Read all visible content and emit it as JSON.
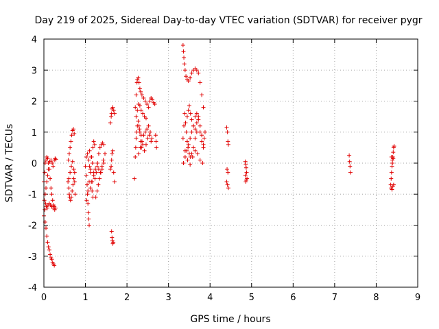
{
  "chart_data": {
    "type": "scatter",
    "title": "Day 219 of 2025, Sidereal Day-to-day VTEC variation (SDTVAR) for receiver pygr",
    "xlabel": "GPS time / hours",
    "ylabel": "SDTVAR / TECUs",
    "xlim": [
      0,
      9
    ],
    "ylim": [
      -4,
      4
    ],
    "xticks": [
      "0",
      "1",
      "2",
      "3",
      "4",
      "5",
      "6",
      "7",
      "8",
      "9"
    ],
    "yticks": [
      "-4",
      "-3",
      "-2",
      "-1",
      "0",
      "1",
      "2",
      "3",
      "4"
    ],
    "grid": true,
    "marker": "+",
    "color": "#e00000",
    "series": [
      {
        "name": "SDTVAR",
        "points": [
          [
            0.0,
            -0.6
          ],
          [
            0.02,
            -0.3
          ],
          [
            0.03,
            0.0
          ],
          [
            0.05,
            0.1
          ],
          [
            0.07,
            0.2
          ],
          [
            0.09,
            0.15
          ],
          [
            0.11,
            0.0
          ],
          [
            0.13,
            -0.2
          ],
          [
            0.15,
            -0.5
          ],
          [
            0.17,
            -0.8
          ],
          [
            0.19,
            -1.0
          ],
          [
            0.21,
            -1.2
          ],
          [
            0.23,
            -1.35
          ],
          [
            0.25,
            -1.4
          ],
          [
            0.28,
            -1.45
          ],
          [
            0.0,
            -1.7
          ],
          [
            0.02,
            -1.5
          ],
          [
            0.04,
            -1.3
          ],
          [
            0.06,
            -1.4
          ],
          [
            0.08,
            -1.45
          ],
          [
            0.1,
            -1.35
          ],
          [
            0.13,
            -1.3
          ],
          [
            0.16,
            -1.35
          ],
          [
            0.19,
            -1.4
          ],
          [
            0.22,
            -1.45
          ],
          [
            0.26,
            -1.5
          ],
          [
            0.01,
            -1.2
          ],
          [
            0.03,
            -1.0
          ],
          [
            0.05,
            -0.8
          ],
          [
            0.07,
            -0.6
          ],
          [
            0.09,
            -0.4
          ],
          [
            0.11,
            -0.2
          ],
          [
            0.14,
            0.05
          ],
          [
            0.17,
            0.1
          ],
          [
            0.2,
            0.0
          ],
          [
            0.22,
            -0.1
          ],
          [
            0.25,
            0.1
          ],
          [
            0.27,
            0.15
          ],
          [
            0.29,
            0.12
          ],
          [
            0.03,
            -1.9
          ],
          [
            0.05,
            -2.1
          ],
          [
            0.07,
            -2.35
          ],
          [
            0.09,
            -2.55
          ],
          [
            0.11,
            -2.7
          ],
          [
            0.13,
            -2.8
          ],
          [
            0.15,
            -2.95
          ],
          [
            0.17,
            -3.05
          ],
          [
            0.19,
            -3.1
          ],
          [
            0.21,
            -3.2
          ],
          [
            0.23,
            -3.25
          ],
          [
            0.25,
            -3.3
          ],
          [
            0.58,
            -0.6
          ],
          [
            0.6,
            -0.8
          ],
          [
            0.61,
            -1.0
          ],
          [
            0.62,
            -1.1
          ],
          [
            0.64,
            -1.2
          ],
          [
            0.66,
            -1.1
          ],
          [
            0.68,
            -0.9
          ],
          [
            0.7,
            -0.7
          ],
          [
            0.72,
            -0.5
          ],
          [
            0.74,
            -0.3
          ],
          [
            0.59,
            0.1
          ],
          [
            0.61,
            0.3
          ],
          [
            0.63,
            0.5
          ],
          [
            0.65,
            0.7
          ],
          [
            0.67,
            0.9
          ],
          [
            0.69,
            1.05
          ],
          [
            0.71,
            1.1
          ],
          [
            0.73,
            0.95
          ],
          [
            0.6,
            -0.5
          ],
          [
            0.63,
            -0.3
          ],
          [
            0.66,
            -0.1
          ],
          [
            0.69,
            0.05
          ],
          [
            0.72,
            -0.2
          ],
          [
            0.74,
            -0.6
          ],
          [
            0.75,
            -1.0
          ],
          [
            1.0,
            -0.1
          ],
          [
            1.02,
            -0.4
          ],
          [
            1.04,
            -0.7
          ],
          [
            1.05,
            -1.0
          ],
          [
            1.06,
            -1.3
          ],
          [
            1.07,
            -1.6
          ],
          [
            1.08,
            -1.8
          ],
          [
            1.09,
            -2.0
          ],
          [
            1.02,
            0.2
          ],
          [
            1.05,
            0.3
          ],
          [
            1.08,
            0.1
          ],
          [
            1.1,
            -0.1
          ],
          [
            1.12,
            -0.3
          ],
          [
            1.14,
            -0.6
          ],
          [
            1.16,
            -0.9
          ],
          [
            1.18,
            -1.1
          ],
          [
            1.03,
            -1.2
          ],
          [
            1.06,
            -0.9
          ],
          [
            1.09,
            -0.6
          ],
          [
            1.12,
            -0.2
          ],
          [
            1.15,
            0.2
          ],
          [
            1.18,
            0.5
          ],
          [
            1.2,
            0.7
          ],
          [
            1.22,
            0.6
          ],
          [
            1.1,
            0.4
          ],
          [
            1.14,
            0.2
          ],
          [
            1.17,
            0.0
          ],
          [
            1.2,
            -0.3
          ],
          [
            1.23,
            -0.5
          ],
          [
            1.26,
            -0.3
          ],
          [
            1.29,
            0.0
          ],
          [
            1.32,
            0.3
          ],
          [
            1.35,
            0.5
          ],
          [
            1.38,
            0.6
          ],
          [
            1.41,
            0.65
          ],
          [
            1.44,
            0.6
          ],
          [
            1.12,
            -0.8
          ],
          [
            1.16,
            -0.6
          ],
          [
            1.2,
            -0.4
          ],
          [
            1.24,
            -0.2
          ],
          [
            1.28,
            -0.1
          ],
          [
            1.32,
            -0.2
          ],
          [
            1.36,
            -0.3
          ],
          [
            1.4,
            -0.2
          ],
          [
            1.44,
            0.0
          ],
          [
            1.47,
            0.3
          ],
          [
            1.25,
            -1.1
          ],
          [
            1.28,
            -0.9
          ],
          [
            1.31,
            -0.7
          ],
          [
            1.34,
            -0.5
          ],
          [
            1.37,
            -0.3
          ],
          [
            1.4,
            -0.1
          ],
          [
            1.43,
            0.1
          ],
          [
            1.6,
            -0.2
          ],
          [
            1.62,
            -0.1
          ],
          [
            1.63,
            0.1
          ],
          [
            1.64,
            0.3
          ],
          [
            1.66,
            0.4
          ],
          [
            1.68,
            -0.3
          ],
          [
            1.7,
            -0.6
          ],
          [
            1.6,
            1.3
          ],
          [
            1.62,
            1.5
          ],
          [
            1.63,
            1.6
          ],
          [
            1.64,
            1.75
          ],
          [
            1.66,
            1.8
          ],
          [
            1.68,
            1.7
          ],
          [
            1.7,
            1.6
          ],
          [
            1.63,
            -2.2
          ],
          [
            1.64,
            -2.4
          ],
          [
            1.65,
            -2.5
          ],
          [
            1.66,
            -2.6
          ],
          [
            1.67,
            -2.55
          ],
          [
            2.18,
            -0.5
          ],
          [
            2.2,
            0.2
          ],
          [
            2.21,
            0.5
          ],
          [
            2.22,
            0.8
          ],
          [
            2.23,
            1.0
          ],
          [
            2.25,
            1.2
          ],
          [
            2.27,
            1.35
          ],
          [
            2.29,
            1.2
          ],
          [
            2.31,
            1.0
          ],
          [
            2.33,
            0.7
          ],
          [
            2.35,
            0.5
          ],
          [
            2.2,
            1.8
          ],
          [
            2.22,
            2.2
          ],
          [
            2.24,
            2.6
          ],
          [
            2.25,
            2.7
          ],
          [
            2.27,
            2.75
          ],
          [
            2.29,
            2.6
          ],
          [
            2.31,
            2.4
          ],
          [
            2.33,
            2.3
          ],
          [
            2.36,
            2.2
          ],
          [
            2.4,
            2.1
          ],
          [
            2.44,
            2.0
          ],
          [
            2.48,
            1.9
          ],
          [
            2.52,
            1.8
          ],
          [
            2.22,
            1.5
          ],
          [
            2.25,
            1.7
          ],
          [
            2.28,
            1.9
          ],
          [
            2.31,
            1.85
          ],
          [
            2.34,
            1.7
          ],
          [
            2.38,
            1.6
          ],
          [
            2.42,
            1.5
          ],
          [
            2.46,
            1.45
          ],
          [
            2.28,
            0.3
          ],
          [
            2.32,
            0.5
          ],
          [
            2.36,
            0.7
          ],
          [
            2.4,
            0.9
          ],
          [
            2.44,
            1.0
          ],
          [
            2.48,
            1.1
          ],
          [
            2.52,
            1.2
          ],
          [
            2.56,
            1.0
          ],
          [
            2.6,
            0.8
          ],
          [
            2.3,
            1.1
          ],
          [
            2.34,
            0.9
          ],
          [
            2.38,
            0.6
          ],
          [
            2.42,
            0.4
          ],
          [
            2.46,
            0.6
          ],
          [
            2.5,
            0.8
          ],
          [
            2.54,
            0.9
          ],
          [
            2.58,
            0.7
          ],
          [
            2.55,
            2.0
          ],
          [
            2.58,
            2.1
          ],
          [
            2.61,
            2.05
          ],
          [
            2.64,
            1.95
          ],
          [
            2.67,
            1.9
          ],
          [
            2.69,
            0.9
          ],
          [
            2.7,
            0.7
          ],
          [
            2.71,
            0.5
          ],
          [
            3.35,
            3.8
          ],
          [
            3.36,
            3.6
          ],
          [
            3.37,
            3.4
          ],
          [
            3.38,
            3.2
          ],
          [
            3.4,
            3.0
          ],
          [
            3.42,
            2.8
          ],
          [
            3.45,
            2.7
          ],
          [
            3.48,
            2.65
          ],
          [
            3.52,
            2.75
          ],
          [
            3.56,
            2.9
          ],
          [
            3.6,
            3.0
          ],
          [
            3.64,
            3.05
          ],
          [
            3.68,
            3.0
          ],
          [
            3.72,
            2.9
          ],
          [
            3.76,
            2.6
          ],
          [
            3.8,
            2.2
          ],
          [
            3.84,
            1.8
          ],
          [
            3.35,
            0.8
          ],
          [
            3.37,
            1.2
          ],
          [
            3.39,
            1.6
          ],
          [
            3.41,
            1.3
          ],
          [
            3.43,
            1.0
          ],
          [
            3.45,
            0.7
          ],
          [
            3.47,
            0.5
          ],
          [
            3.5,
            0.3
          ],
          [
            3.53,
            0.2
          ],
          [
            3.56,
            0.3
          ],
          [
            3.6,
            0.5
          ],
          [
            3.64,
            0.8
          ],
          [
            3.68,
            1.0
          ],
          [
            3.45,
            1.5
          ],
          [
            3.48,
            1.7
          ],
          [
            3.5,
            1.85
          ],
          [
            3.53,
            1.6
          ],
          [
            3.56,
            1.4
          ],
          [
            3.6,
            1.2
          ],
          [
            3.64,
            1.1
          ],
          [
            3.68,
            1.3
          ],
          [
            3.72,
            1.5
          ],
          [
            3.76,
            1.2
          ],
          [
            3.8,
            0.9
          ],
          [
            3.84,
            0.6
          ],
          [
            3.36,
            0.0
          ],
          [
            3.4,
            0.2
          ],
          [
            3.44,
            0.4
          ],
          [
            3.48,
            0.6
          ],
          [
            3.52,
            0.8
          ],
          [
            3.56,
            1.0
          ],
          [
            3.6,
            1.2
          ],
          [
            3.64,
            1.5
          ],
          [
            3.68,
            1.6
          ],
          [
            3.72,
            1.4
          ],
          [
            3.76,
            1.0
          ],
          [
            3.8,
            0.7
          ],
          [
            3.84,
            0.5
          ],
          [
            3.86,
            0.8
          ],
          [
            3.88,
            1.0
          ],
          [
            3.4,
            0.4
          ],
          [
            3.46,
            0.1
          ],
          [
            3.52,
            -0.05
          ],
          [
            3.58,
            0.2
          ],
          [
            3.64,
            0.4
          ],
          [
            3.7,
            0.3
          ],
          [
            3.76,
            0.1
          ],
          [
            3.82,
            0.0
          ],
          [
            4.4,
            1.15
          ],
          [
            4.42,
            1.0
          ],
          [
            4.43,
            0.7
          ],
          [
            4.44,
            0.6
          ],
          [
            4.41,
            -0.2
          ],
          [
            4.43,
            -0.3
          ],
          [
            4.4,
            -0.6
          ],
          [
            4.42,
            -0.7
          ],
          [
            4.44,
            -0.8
          ],
          [
            4.85,
            0.05
          ],
          [
            4.86,
            -0.05
          ],
          [
            4.87,
            -0.15
          ],
          [
            4.88,
            -0.3
          ],
          [
            4.89,
            -0.5
          ],
          [
            4.86,
            -0.6
          ],
          [
            4.87,
            -0.55
          ],
          [
            4.85,
            -0.4
          ],
          [
            7.35,
            0.25
          ],
          [
            7.36,
            0.05
          ],
          [
            7.37,
            -0.1
          ],
          [
            7.38,
            -0.3
          ],
          [
            8.35,
            -0.7
          ],
          [
            8.36,
            -0.5
          ],
          [
            8.37,
            -0.3
          ],
          [
            8.38,
            -0.1
          ],
          [
            8.39,
            0.1
          ],
          [
            8.4,
            0.2
          ],
          [
            8.41,
            0.35
          ],
          [
            8.42,
            0.5
          ],
          [
            8.43,
            0.55
          ],
          [
            8.36,
            -0.8
          ],
          [
            8.38,
            -0.85
          ],
          [
            8.4,
            -0.75
          ],
          [
            8.42,
            -0.7
          ],
          [
            8.37,
            0.2
          ],
          [
            8.39,
            0.0
          ],
          [
            8.41,
            0.15
          ]
        ]
      }
    ]
  }
}
